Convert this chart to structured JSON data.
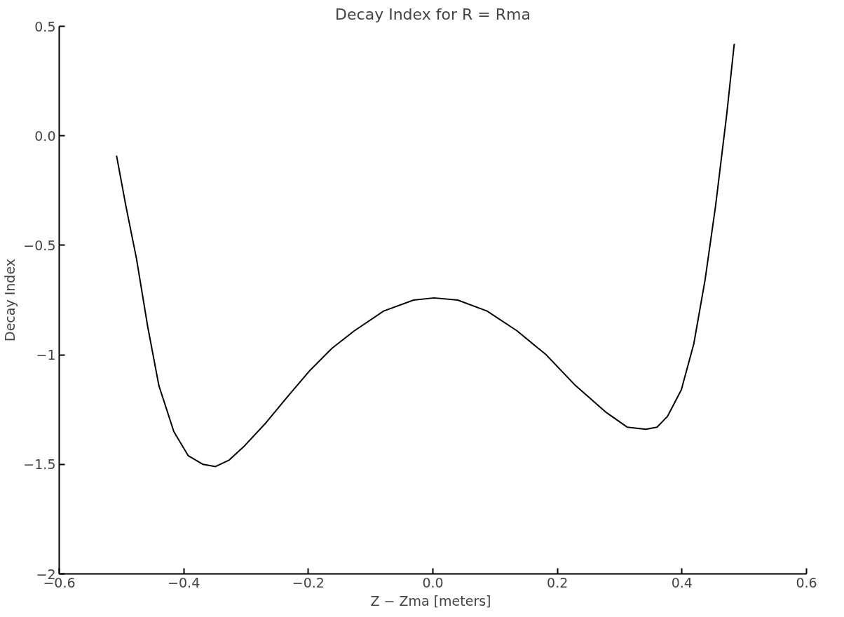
{
  "chart_data": {
    "type": "line",
    "title": "Decay Index for R = Rma",
    "xlabel": "Z − Zma  [meters]",
    "ylabel": "Decay Index",
    "xlim": [
      -0.6,
      0.6
    ],
    "ylim": [
      -2,
      0.5
    ],
    "xticks": [
      -0.6,
      -0.4,
      -0.2,
      {
        "value": 0,
        "label": "0.0"
      },
      0.2,
      0.4,
      0.6
    ],
    "yticks": [
      -2,
      -1.5,
      -1,
      -0.5,
      {
        "value": 0,
        "label": "0.0"
      },
      0.5
    ],
    "grid": false,
    "marker": "none",
    "line_style": "solid",
    "series": [
      {
        "color": "#000000",
        "x": [
          -0.508,
          -0.493,
          -0.476,
          -0.458,
          -0.44,
          -0.416,
          -0.393,
          -0.369,
          -0.349,
          -0.327,
          -0.304,
          -0.268,
          -0.233,
          -0.197,
          -0.162,
          -0.126,
          -0.079,
          -0.031,
          0.002,
          0.04,
          0.087,
          0.135,
          0.182,
          0.229,
          0.277,
          0.312,
          0.342,
          0.36,
          0.377,
          0.399,
          0.419,
          0.437,
          0.454,
          0.472,
          0.484
        ],
        "values": [
          -0.09,
          -0.32,
          -0.56,
          -0.87,
          -1.14,
          -1.35,
          -1.46,
          -1.5,
          -1.51,
          -1.48,
          -1.42,
          -1.31,
          -1.19,
          -1.07,
          -0.97,
          -0.89,
          -0.8,
          -0.75,
          -0.74,
          -0.75,
          -0.8,
          -0.89,
          -1.0,
          -1.14,
          -1.26,
          -1.33,
          -1.34,
          -1.33,
          -1.28,
          -1.16,
          -0.95,
          -0.66,
          -0.32,
          0.1,
          0.42
        ]
      }
    ]
  }
}
